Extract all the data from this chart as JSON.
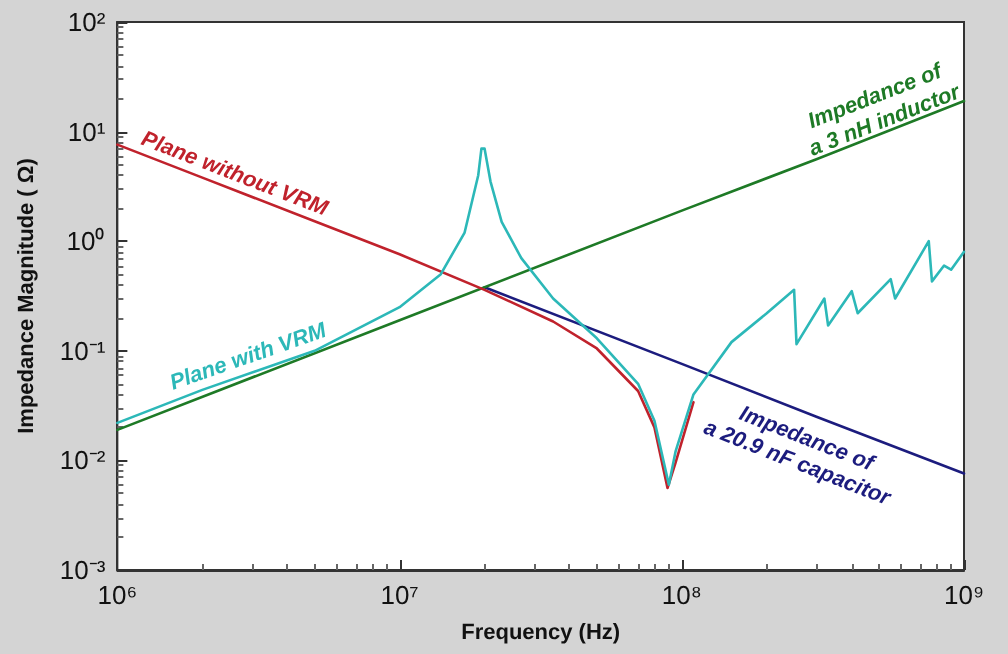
{
  "chart_data": {
    "type": "line",
    "xlabel": "Frequency (Hz)",
    "ylabel": "Impedance Magnitude ( Ω)",
    "log": "xy",
    "grid": false,
    "marker": "none",
    "line_style": "solid",
    "xlim": [
      1000000,
      1000000000
    ],
    "ylim": [
      0.001,
      100
    ],
    "xticks": [
      {
        "value": 1000000,
        "label": "10⁶"
      },
      {
        "value": 10000000,
        "label": "10⁷"
      },
      {
        "value": 100000000,
        "label": "10⁸"
      },
      {
        "value": 1000000000,
        "label": "10⁹"
      }
    ],
    "yticks": [
      {
        "value": 0.001,
        "label": "10⁻³"
      },
      {
        "value": 0.01,
        "label": "10⁻²"
      },
      {
        "value": 0.1,
        "label": "10⁻¹"
      },
      {
        "value": 1,
        "label": "10⁰"
      },
      {
        "value": 10,
        "label": "10¹"
      },
      {
        "value": 100,
        "label": "10²"
      }
    ],
    "series": [
      {
        "name": "Impedance of\na 20.9 nF capacitor",
        "color": "#1c1c7e",
        "x": [
          20000000,
          100000000,
          300000000,
          1000000000
        ],
        "values": [
          0.38,
          0.076,
          0.025,
          0.0076
        ]
      },
      {
        "name": "Impedance of\na 3 nH inductor",
        "color": "#1e7a26",
        "x": [
          1000000,
          10000000,
          100000000,
          300000000,
          1000000000
        ],
        "values": [
          0.019,
          0.19,
          1.9,
          5.6,
          19
        ]
      },
      {
        "name": "Plane without VRM",
        "color": "#c0222c",
        "x": [
          1000000,
          2000000,
          5000000,
          10000000,
          20000000,
          35000000,
          50000000,
          70000000,
          80000000,
          89000000,
          95000000,
          110000000
        ],
        "values": [
          7.6,
          3.8,
          1.52,
          0.76,
          0.36,
          0.185,
          0.105,
          0.043,
          0.02,
          0.0056,
          0.0095,
          0.034
        ]
      },
      {
        "name": "Plane with VRM",
        "color": "#2cb8b8",
        "x": [
          1000000,
          2000000,
          5000000,
          10000000,
          14000000,
          17000000,
          19000000,
          19500000,
          20000000,
          21000000,
          23000000,
          27000000,
          35000000,
          50000000,
          70000000,
          80000000,
          90000000,
          95000000,
          110000000,
          150000000,
          200000000,
          250000000,
          255000000,
          320000000,
          330000000,
          400000000,
          420000000,
          550000000,
          570000000,
          750000000,
          770000000,
          850000000,
          900000000,
          1000000000
        ],
        "values": [
          0.022,
          0.044,
          0.1,
          0.25,
          0.5,
          1.2,
          4,
          7,
          7,
          3.5,
          1.5,
          0.7,
          0.3,
          0.13,
          0.05,
          0.023,
          0.006,
          0.012,
          0.04,
          0.12,
          0.22,
          0.36,
          0.115,
          0.3,
          0.17,
          0.35,
          0.22,
          0.45,
          0.3,
          1.0,
          0.43,
          0.6,
          0.55,
          0.8
        ]
      }
    ]
  }
}
